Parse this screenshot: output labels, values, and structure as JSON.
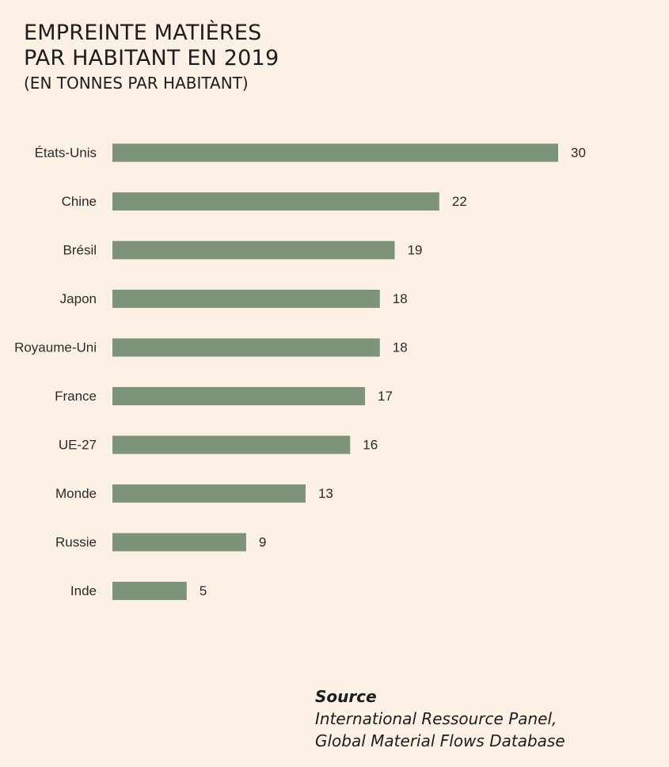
{
  "header": {
    "title_line1": "EMPREINTE MATIÈRES",
    "title_line2": "PAR HABITANT EN 2019",
    "subtitle": "(EN TONNES PAR HABITANT)"
  },
  "chart_data": {
    "type": "bar",
    "orientation": "horizontal",
    "title": "EMPREINTE MATIÈRES PAR HABITANT EN 2019",
    "subtitle": "(EN TONNES PAR HABITANT)",
    "xlabel": "",
    "ylabel": "",
    "unit": "tonnes par habitant",
    "xlim": [
      0,
      30
    ],
    "grid": false,
    "categories": [
      "États-Unis",
      "Chine",
      "Brésil",
      "Japon",
      "Royaume-Uni",
      "France",
      "UE-27",
      "Monde",
      "Russie",
      "Inde"
    ],
    "values": [
      30,
      22,
      19,
      18,
      18,
      17,
      16,
      13,
      9,
      5
    ],
    "bar_color": "#7d937a"
  },
  "source": {
    "label": "Source",
    "line1": "International Ressource Panel,",
    "line2": "Global Material Flows Database"
  },
  "colors": {
    "background": "#fdf1e6",
    "bar": "#7d937a",
    "text": "#1d1d1d"
  }
}
